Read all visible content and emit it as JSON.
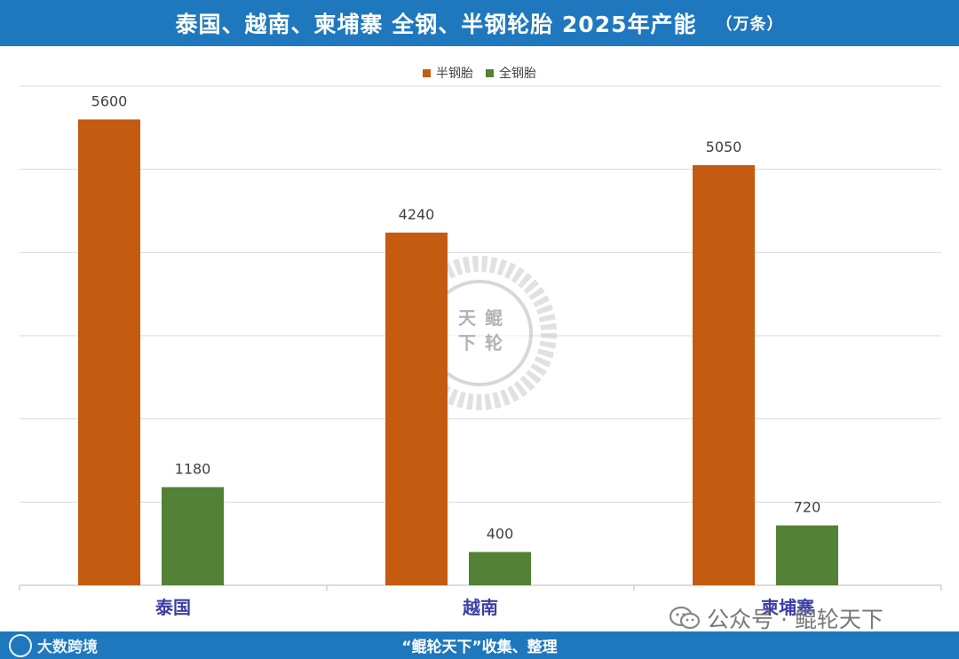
{
  "title": "泰国、越南、柬埔寨 全钢、半钢轮胎 2025年产能",
  "unit": "（万条）",
  "colors": {
    "header": "#1f78be",
    "semi_steel": "#c55a11",
    "all_steel": "#538135",
    "category_label": "#3b3fa8"
  },
  "chart_data": {
    "type": "bar",
    "categories": [
      "泰国",
      "越南",
      "柬埔寨"
    ],
    "series": [
      {
        "name": "半钢胎",
        "values": [
          5600,
          4240,
          5050
        ]
      },
      {
        "name": "全钢胎",
        "values": [
          1180,
          400,
          720
        ]
      }
    ],
    "ylim": [
      0,
      6000
    ],
    "grid": true,
    "legend_position": "top-center",
    "data_labels": true
  },
  "footer": {
    "text": "“鲲轮天下”收集、整理",
    "left_brand": "大数跨境"
  },
  "watermark": {
    "wechat_text": "公众号 · 鲲轮天下",
    "logo_chars": [
      "天",
      "鲲",
      "下",
      "轮"
    ]
  }
}
